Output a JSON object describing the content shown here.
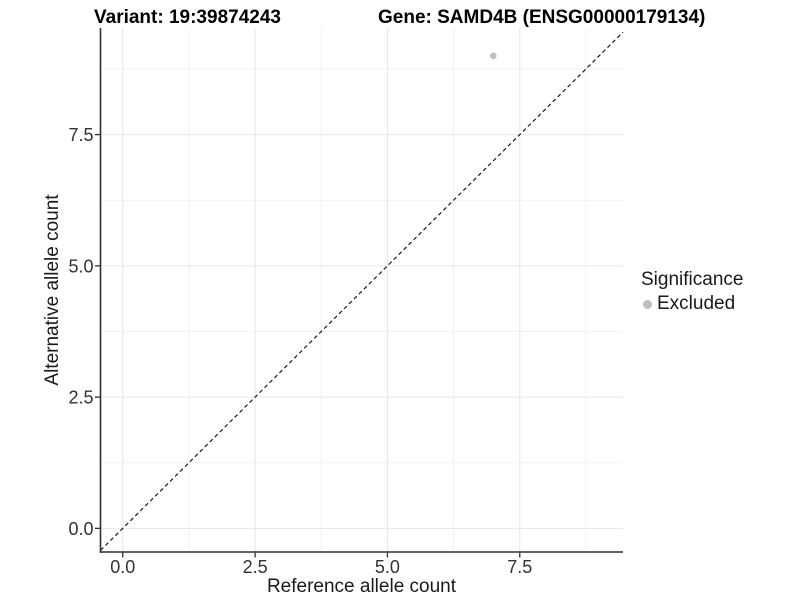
{
  "header": {
    "variant_title": "Variant: 19:39874243",
    "gene_title": "Gene: SAMD4B (ENSG00000179134)"
  },
  "axes": {
    "x_label": "Reference allele count",
    "y_label": "Alternative allele count"
  },
  "legend": {
    "title": "Significance",
    "entries": [
      {
        "label": "Excluded",
        "color": "#bfbfbf"
      }
    ]
  },
  "chart_data": {
    "type": "scatter",
    "title": "Variant: 19:39874243    Gene: SAMD4B (ENSG00000179134)",
    "xlabel": "Reference allele count",
    "ylabel": "Alternative allele count",
    "xlim": [
      -0.42,
      9.45
    ],
    "ylim": [
      -0.45,
      9.53
    ],
    "x_ticks": [
      0.0,
      2.5,
      5.0,
      7.5
    ],
    "y_ticks": [
      0.0,
      2.5,
      5.0,
      7.5
    ],
    "x_minor_ticks": [
      1.25,
      3.75,
      6.25,
      8.75
    ],
    "y_minor_ticks": [
      1.25,
      3.75,
      6.25,
      8.75
    ],
    "grid": {
      "on": true,
      "major_color": "#e6e6e6",
      "minor_color": "#f2f2f2",
      "background": "#ffffff"
    },
    "axis_line_color": "#2e2e2e",
    "reference_line": {
      "kind": "identity",
      "dashed": true,
      "color": "#1a1a1a"
    },
    "series": [
      {
        "name": "Excluded",
        "color": "#bfbfbf",
        "points": [
          {
            "x": 7,
            "y": 9
          }
        ]
      }
    ],
    "legend_position": "right",
    "legend_title": "Significance"
  }
}
